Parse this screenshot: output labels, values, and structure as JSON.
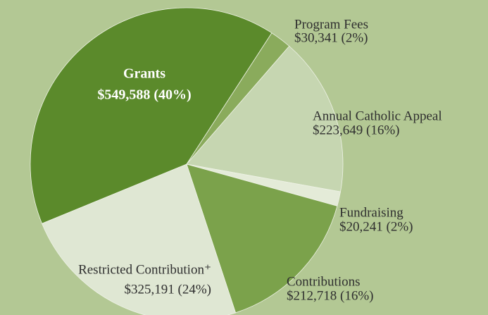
{
  "chart_data": {
    "type": "pie",
    "categories": [
      "Grants",
      "Program Fees",
      "Annual Catholic Appeal",
      "Fundraising",
      "Contributions",
      "Restricted Contribution⁺"
    ],
    "values": [
      549588,
      30341,
      223649,
      20241,
      212718,
      325191
    ],
    "value_labels": [
      "$549,588 (40%)",
      "$30,341 (2%)",
      "$223,649 (16%)",
      "$20,241 (2%)",
      "$212,718 (16%)",
      "$325,191 (24%)"
    ],
    "colors": [
      "#5b8a2b",
      "#8aab5c",
      "#c6d6b1",
      "#e4ebd8",
      "#7ba24b",
      "#dfe7d3"
    ]
  }
}
